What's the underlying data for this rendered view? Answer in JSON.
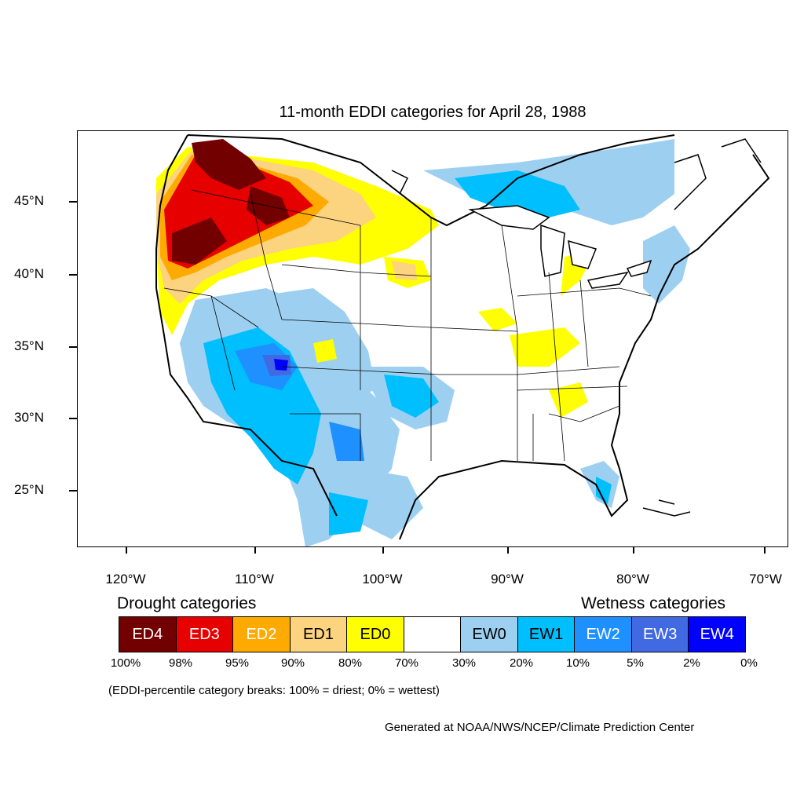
{
  "title": "11-month EDDI categories for April 28, 1988",
  "lat_labels": [
    "45°N",
    "40°N",
    "35°N",
    "30°N",
    "25°N"
  ],
  "lon_labels": [
    "120°W",
    "110°W",
    "100°W",
    "90°W",
    "80°W",
    "70°W"
  ],
  "drought_heading": "Drought categories",
  "wetness_heading": "Wetness categories",
  "categories": [
    {
      "label": "ED4",
      "color": "#730000",
      "text_color": "#ffffff"
    },
    {
      "label": "ED3",
      "color": "#e60000",
      "text_color": "#ffffff"
    },
    {
      "label": "ED2",
      "color": "#ffaa00",
      "text_color": "#ffffff"
    },
    {
      "label": "ED1",
      "color": "#fcd37f",
      "text_color": "#000000"
    },
    {
      "label": "ED0",
      "color": "#ffff00",
      "text_color": "#000000"
    },
    {
      "label": "",
      "color": "#ffffff",
      "text_color": "#000000"
    },
    {
      "label": "EW0",
      "color": "#9dd0f0",
      "text_color": "#000000"
    },
    {
      "label": "EW1",
      "color": "#00bfff",
      "text_color": "#000000"
    },
    {
      "label": "EW2",
      "color": "#1e90ff",
      "text_color": "#ffffff"
    },
    {
      "label": "EW3",
      "color": "#4169e1",
      "text_color": "#ffffff"
    },
    {
      "label": "EW4",
      "color": "#0000ff",
      "text_color": "#ffffff"
    }
  ],
  "percent_breaks": [
    "100%",
    "98%",
    "95%",
    "90%",
    "80%",
    "70%",
    "30%",
    "20%",
    "10%",
    "5%",
    "2%",
    "0%"
  ],
  "note": "(EDDI-percentile category breaks: 100% = driest; 0% = wettest)",
  "credit": "Generated at NOAA/NWS/NCEP/Climate Prediction Center"
}
